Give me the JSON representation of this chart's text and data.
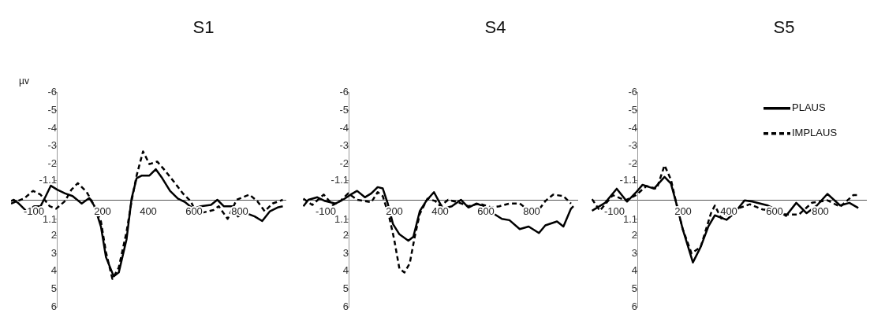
{
  "chart_data": [
    {
      "type": "line",
      "title": "S1",
      "ylabel": "µv",
      "xlim": [
        -200,
        1000
      ],
      "ylim": [
        6,
        -6
      ],
      "xticks": [
        -100,
        200,
        400,
        600,
        800
      ],
      "yticks": [
        -6,
        -5,
        -4,
        -3,
        -2,
        -1.1,
        1.1,
        2,
        3,
        4,
        5,
        6
      ],
      "marker": "none",
      "series": [
        {
          "color": "#000000",
          "line_style": "solid",
          "x": [
            -200,
            -188,
            -166,
            -132,
            -99,
            -71,
            -48,
            -26,
            2,
            36,
            69,
            109,
            142,
            165,
            193,
            215,
            249,
            271,
            305,
            327,
            349,
            372,
            405,
            433,
            461,
            495,
            529,
            562,
            596,
            629,
            674,
            702,
            730,
            769,
            792,
            820,
            865,
            898,
            932,
            965,
            988
          ],
          "values": [
            0.07,
            0,
            0.21,
            0.64,
            0.36,
            0.36,
            -0.21,
            -0.79,
            -0.57,
            -0.36,
            -0.21,
            0.21,
            -0.1,
            0.36,
            1.5,
            3.21,
            4.29,
            4.07,
            2.21,
            -0.07,
            -1.21,
            -1.36,
            -1.36,
            -1.71,
            -1.21,
            -0.5,
            -0.07,
            0.14,
            0.5,
            0.36,
            0.29,
            0,
            0.36,
            0.36,
            0.93,
            0.71,
            0.93,
            1.19,
            0.64,
            0.43,
            0.36
          ]
        },
        {
          "color": "#000000",
          "line_style": "dashed",
          "x": [
            -200,
            -143,
            -104,
            -71,
            -31,
            -3,
            36,
            64,
            92,
            131,
            159,
            193,
            215,
            243,
            271,
            305,
            327,
            349,
            377,
            405,
            439,
            473,
            517,
            551,
            585,
            607,
            641,
            685,
            708,
            747,
            786,
            842,
            876,
            909,
            943,
            988
          ],
          "values": [
            0.21,
            -0.07,
            -0.5,
            -0.29,
            0.36,
            0.5,
            0.07,
            -0.57,
            -0.93,
            -0.43,
            0.21,
            1.21,
            2.93,
            4.43,
            3.79,
            1.79,
            0.07,
            -1.36,
            -2.71,
            -2,
            -2.14,
            -1.64,
            -0.93,
            -0.36,
            0.07,
            0.64,
            0.71,
            0.57,
            0.36,
            1.07,
            0,
            -0.29,
            0.07,
            0.64,
            0.21,
            0
          ]
        }
      ]
    },
    {
      "type": "line",
      "title": "S4",
      "xlim": [
        -200,
        1000
      ],
      "ylim": [
        6,
        -6
      ],
      "xticks": [
        -100,
        200,
        400,
        600,
        800
      ],
      "yticks": [
        -6,
        -5,
        -4,
        -3,
        -2,
        -1.1,
        1.1,
        2,
        3,
        4,
        5,
        6
      ],
      "marker": "none",
      "series": [
        {
          "color": "#000000",
          "line_style": "solid",
          "x": [
            -198,
            -176,
            -137,
            -103,
            -58,
            -25,
            9,
            37,
            71,
            99,
            127,
            149,
            171,
            194,
            222,
            261,
            283,
            311,
            339,
            373,
            412,
            451,
            491,
            524,
            558,
            591,
            636,
            670,
            703,
            748,
            787,
            832,
            860,
            911,
            939,
            972,
            983
          ],
          "values": [
            0.36,
            0,
            -0.14,
            0.07,
            0.21,
            0,
            -0.29,
            -0.5,
            -0.14,
            -0.36,
            -0.71,
            -0.64,
            0.21,
            1.36,
            1.93,
            2.29,
            2.07,
            0.64,
            0.07,
            -0.43,
            0.5,
            0.36,
            0,
            0.43,
            0.21,
            0.36,
            0.79,
            1.07,
            1.14,
            1.64,
            1.5,
            1.86,
            1.43,
            1.21,
            1.5,
            0.5,
            0.36
          ]
        },
        {
          "color": "#000000",
          "line_style": "dashed",
          "x": [
            -198,
            -159,
            -109,
            -69,
            -36,
            -2,
            37,
            99,
            127,
            149,
            177,
            199,
            222,
            244,
            267,
            289,
            311,
            345,
            379,
            401,
            435,
            479,
            524,
            569,
            625,
            659,
            703,
            748,
            793,
            827,
            860,
            894,
            939,
            972
          ],
          "values": [
            -0.07,
            0.29,
            -0.29,
            0.29,
            0.07,
            -0.36,
            0,
            0.14,
            -0.43,
            -0.21,
            0.93,
            2.21,
            3.86,
            4.07,
            3.57,
            2.07,
            0.79,
            -0.07,
            0.07,
            0.36,
            0,
            0.14,
            0.36,
            0.21,
            0.43,
            0.36,
            0.21,
            0.21,
            0.64,
            0.64,
            0.07,
            -0.29,
            -0.21,
            0.21
          ]
        }
      ]
    },
    {
      "type": "line",
      "title": "S5",
      "xlim": [
        -200,
        1000
      ],
      "ylim": [
        6,
        -6
      ],
      "xticks": [
        -100,
        200,
        400,
        600,
        800
      ],
      "yticks": [
        -6,
        -5,
        -4,
        -3,
        -2,
        -1.1,
        1.1,
        2,
        3,
        4,
        5,
        6
      ],
      "marker": "none",
      "legend": "top right",
      "series": [
        {
          "name": "PLAUS",
          "color": "#000000",
          "line_style": "solid",
          "x": [
            -198,
            -141,
            -90,
            -45,
            -6,
            23,
            73,
            119,
            147,
            170,
            198,
            243,
            277,
            311,
            339,
            390,
            424,
            469,
            503,
            571,
            616,
            650,
            695,
            740,
            785,
            831,
            887,
            927,
            966
          ],
          "values": [
            0.61,
            0.17,
            -0.62,
            0.1,
            -0.41,
            -0.84,
            -0.62,
            -1.28,
            -0.91,
            0.17,
            1.62,
            3.51,
            2.64,
            1.48,
            0.87,
            1.12,
            0.75,
            0.03,
            0.1,
            0.32,
            0.61,
            0.9,
            0.17,
            0.75,
            0.32,
            -0.33,
            0.32,
            0.17,
            0.46
          ]
        },
        {
          "name": "IMPLAUS",
          "color": "#000000",
          "line_style": "dashed",
          "x": [
            -198,
            -164,
            -107,
            -51,
            -6,
            40,
            85,
            119,
            147,
            170,
            198,
            237,
            277,
            322,
            339,
            367,
            401,
            446,
            492,
            548,
            605,
            650,
            706,
            763,
            831,
            887,
            944,
            966
          ],
          "values": [
            -0.04,
            0.61,
            -0.26,
            0.03,
            -0.26,
            -0.77,
            -0.62,
            -1.93,
            -1.13,
            0.17,
            1.62,
            3,
            2.64,
            0.75,
            0.32,
            1.04,
            0.75,
            0.46,
            0.25,
            0.54,
            0.61,
            0.83,
            0.83,
            0.17,
            0.03,
            0.39,
            -0.26,
            -0.26
          ]
        }
      ]
    }
  ]
}
